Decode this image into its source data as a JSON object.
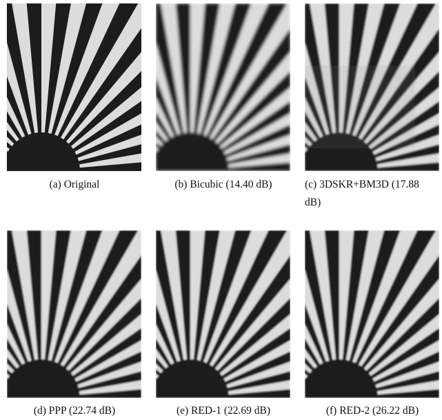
{
  "figures": [
    {
      "caption": "(a) Original"
    },
    {
      "caption": "(b) Bicubic (14.40 dB)"
    },
    {
      "caption": "(c) 3DSKR+BM3D (17.88 dB)"
    },
    {
      "caption": "(d) PPP (22.74 dB)"
    },
    {
      "caption": "(e) RED-1 (22.69 dB)"
    },
    {
      "caption": "(f) RED-2 (26.22 dB)"
    }
  ]
}
